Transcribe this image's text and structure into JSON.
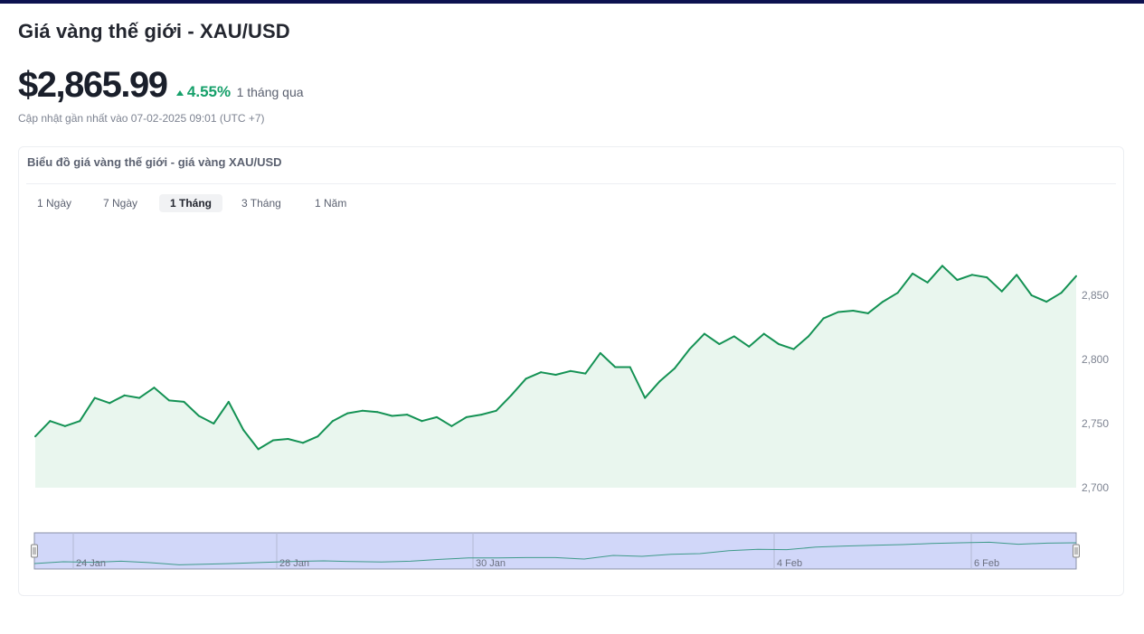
{
  "page": {
    "title": "Giá vàng thế giới - XAU/USD",
    "price": "$2,865.99",
    "change_pct": "4.55%",
    "change_period": "1 tháng qua",
    "updated": "Cập nhật gần nhất vào 07-02-2025 09:01 (UTC +7)"
  },
  "card": {
    "title": "Biểu đồ giá vàng thế giới - giá vàng XAU/USD",
    "tabs": [
      {
        "label": "1 Ngày",
        "active": false
      },
      {
        "label": "7 Ngày",
        "active": false
      },
      {
        "label": "1 Tháng",
        "active": true
      },
      {
        "label": "3 Tháng",
        "active": false
      },
      {
        "label": "1 Năm",
        "active": false
      }
    ]
  },
  "colors": {
    "accent": "#16a06a",
    "line": "#149254",
    "area": "#e9f6ee",
    "navigator_mask": "#c5cdf7",
    "header_bar": "#0d1250"
  },
  "chart_data": {
    "type": "area",
    "title": "",
    "xlabel": "",
    "ylabel": "",
    "ylim": [
      2700,
      2880
    ],
    "yticks": [
      2700,
      2750,
      2800,
      2850
    ],
    "ytick_labels": [
      "2,700",
      "2,750",
      "2,800",
      "2,850"
    ],
    "y_axis_position": "right",
    "grid": false,
    "legend": "none",
    "series": [
      {
        "values": [
          2740,
          2752,
          2748,
          2752,
          2770,
          2766,
          2772,
          2770,
          2778,
          2768,
          2767,
          2756,
          2750,
          2767,
          2745,
          2730,
          2737,
          2738,
          2735,
          2740,
          2752,
          2758,
          2760,
          2759,
          2756,
          2757,
          2752,
          2755,
          2748,
          2755,
          2757,
          2760,
          2772,
          2785,
          2790,
          2788,
          2791,
          2789,
          2805,
          2794,
          2794,
          2770,
          2783,
          2793,
          2808,
          2820,
          2812,
          2818,
          2810,
          2820,
          2812,
          2808,
          2818,
          2832,
          2837,
          2838,
          2836,
          2845,
          2852,
          2867,
          2860,
          2873,
          2862,
          2866,
          2864,
          2853,
          2866,
          2850,
          2845,
          2852,
          2865
        ],
        "navigator_values": [
          2745,
          2755,
          2752,
          2758,
          2750,
          2738,
          2742,
          2746,
          2752,
          2757,
          2760,
          2756,
          2754,
          2758,
          2768,
          2776,
          2776,
          2778,
          2778,
          2770,
          2790,
          2785,
          2796,
          2800,
          2816,
          2824,
          2822,
          2836,
          2842,
          2846,
          2850,
          2856,
          2860,
          2863,
          2852,
          2858,
          2860
        ]
      }
    ],
    "navigator_date_labels": [
      "24 Jan",
      "28 Jan",
      "30 Jan",
      "4 Feb",
      "6 Feb"
    ]
  }
}
